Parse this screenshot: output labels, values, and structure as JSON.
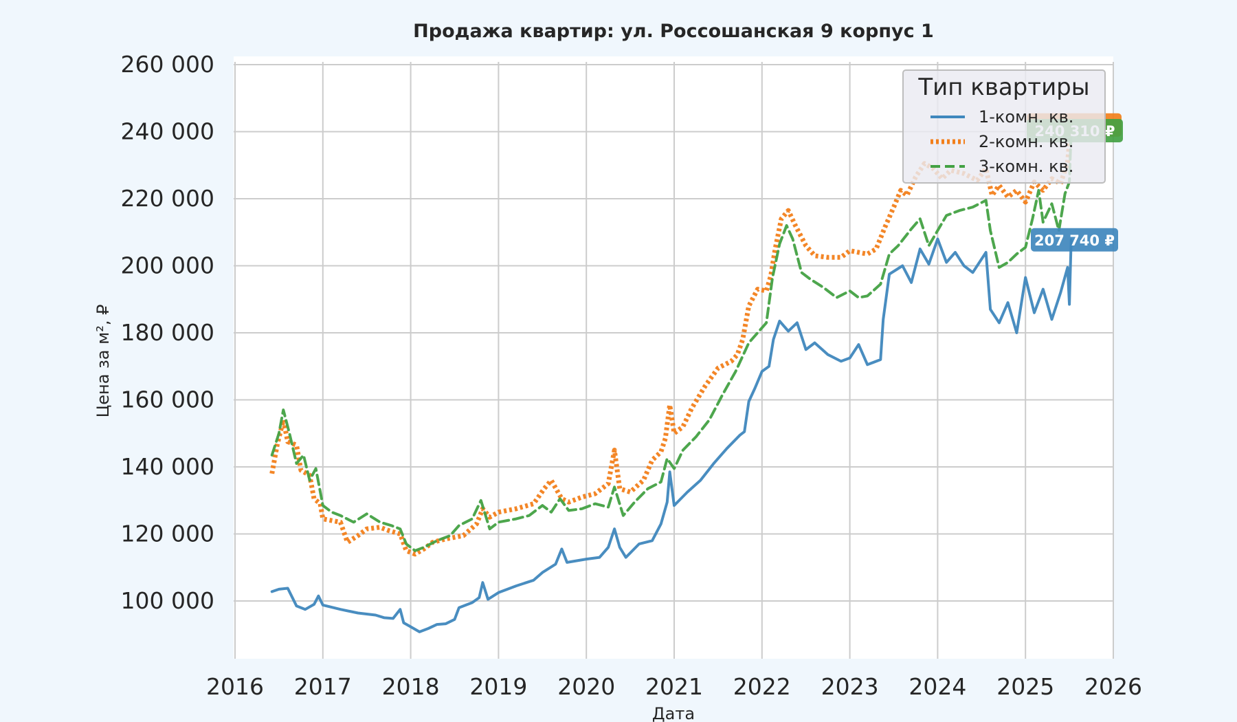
{
  "chart_data": {
    "type": "line",
    "title": "Продажа квартир: ул. Россошанская 9 корпус 1",
    "xlabel": "Дата",
    "ylabel": "Цена за м², ₽",
    "xlim": [
      2016,
      2026
    ],
    "ylim": [
      82000,
      262000
    ],
    "x_ticks": [
      "2016",
      "2017",
      "2018",
      "2019",
      "2020",
      "2021",
      "2022",
      "2023",
      "2024",
      "2025",
      "2026"
    ],
    "y_ticks": [
      {
        "value": 100000,
        "label": "100 000"
      },
      {
        "value": 120000,
        "label": "120 000"
      },
      {
        "value": 140000,
        "label": "140 000"
      },
      {
        "value": 160000,
        "label": "160 000"
      },
      {
        "value": 180000,
        "label": "180 000"
      },
      {
        "value": 200000,
        "label": "200 000"
      },
      {
        "value": 220000,
        "label": "220 000"
      },
      {
        "value": 240000,
        "label": "240 000"
      },
      {
        "value": 260000,
        "label": "260 000"
      }
    ],
    "grid": true,
    "legend": {
      "title": "Тип квартиры",
      "placement": "top-right"
    },
    "series": [
      {
        "name": "1-комн. кв.",
        "color": "#3f87bd",
        "style": "solid",
        "end_label": "207 740 ₽",
        "end_value": 207740,
        "points": [
          [
            2016.42,
            102800
          ],
          [
            2016.5,
            103500
          ],
          [
            2016.6,
            103800
          ],
          [
            2016.7,
            98500
          ],
          [
            2016.8,
            97500
          ],
          [
            2016.9,
            99000
          ],
          [
            2016.95,
            101500
          ],
          [
            2017.0,
            98800
          ],
          [
            2017.2,
            97500
          ],
          [
            2017.4,
            96400
          ],
          [
            2017.6,
            95800
          ],
          [
            2017.7,
            95000
          ],
          [
            2017.8,
            94800
          ],
          [
            2017.88,
            97500
          ],
          [
            2017.92,
            93500
          ],
          [
            2018.0,
            92300
          ],
          [
            2018.1,
            90800
          ],
          [
            2018.2,
            91800
          ],
          [
            2018.3,
            93000
          ],
          [
            2018.4,
            93200
          ],
          [
            2018.5,
            94500
          ],
          [
            2018.55,
            98000
          ],
          [
            2018.7,
            99500
          ],
          [
            2018.78,
            101000
          ],
          [
            2018.82,
            105500
          ],
          [
            2018.88,
            100500
          ],
          [
            2019.0,
            102500
          ],
          [
            2019.2,
            104500
          ],
          [
            2019.4,
            106200
          ],
          [
            2019.5,
            108500
          ],
          [
            2019.65,
            111000
          ],
          [
            2019.72,
            115500
          ],
          [
            2019.78,
            111500
          ],
          [
            2020.0,
            112500
          ],
          [
            2020.15,
            113000
          ],
          [
            2020.25,
            116000
          ],
          [
            2020.32,
            121500
          ],
          [
            2020.38,
            116000
          ],
          [
            2020.45,
            113000
          ],
          [
            2020.6,
            117000
          ],
          [
            2020.75,
            118000
          ],
          [
            2020.85,
            123000
          ],
          [
            2020.92,
            129500
          ],
          [
            2020.95,
            138500
          ],
          [
            2021.0,
            128500
          ],
          [
            2021.15,
            132500
          ],
          [
            2021.3,
            136000
          ],
          [
            2021.45,
            141000
          ],
          [
            2021.6,
            145500
          ],
          [
            2021.75,
            149500
          ],
          [
            2021.8,
            150500
          ],
          [
            2021.85,
            159500
          ],
          [
            2021.92,
            163500
          ],
          [
            2022.0,
            168500
          ],
          [
            2022.08,
            170000
          ],
          [
            2022.13,
            178000
          ],
          [
            2022.2,
            183500
          ],
          [
            2022.3,
            180500
          ],
          [
            2022.4,
            183000
          ],
          [
            2022.5,
            175000
          ],
          [
            2022.6,
            177000
          ],
          [
            2022.75,
            173500
          ],
          [
            2022.9,
            171500
          ],
          [
            2023.0,
            172500
          ],
          [
            2023.1,
            176500
          ],
          [
            2023.2,
            170500
          ],
          [
            2023.35,
            172000
          ],
          [
            2023.38,
            184000
          ],
          [
            2023.45,
            197500
          ],
          [
            2023.6,
            200000
          ],
          [
            2023.7,
            195000
          ],
          [
            2023.8,
            205000
          ],
          [
            2023.9,
            200500
          ],
          [
            2024.0,
            208000
          ],
          [
            2024.1,
            201000
          ],
          [
            2024.2,
            204000
          ],
          [
            2024.3,
            200000
          ],
          [
            2024.4,
            198000
          ],
          [
            2024.55,
            204000
          ],
          [
            2024.6,
            187000
          ],
          [
            2024.7,
            183000
          ],
          [
            2024.8,
            189000
          ],
          [
            2024.9,
            180000
          ],
          [
            2025.0,
            196500
          ],
          [
            2025.1,
            186000
          ],
          [
            2025.2,
            193000
          ],
          [
            2025.3,
            184000
          ],
          [
            2025.4,
            192000
          ],
          [
            2025.48,
            199500
          ],
          [
            2025.5,
            188500
          ],
          [
            2025.52,
            207740
          ]
        ]
      },
      {
        "name": "2-комн. кв.",
        "color": "#f27f1b",
        "style": "dotted",
        "end_label": "",
        "end_value": 242000,
        "points": [
          [
            2016.42,
            138000
          ],
          [
            2016.48,
            146500
          ],
          [
            2016.55,
            154000
          ],
          [
            2016.6,
            147500
          ],
          [
            2016.7,
            146500
          ],
          [
            2016.75,
            139000
          ],
          [
            2016.85,
            137500
          ],
          [
            2016.9,
            130500
          ],
          [
            2016.97,
            129000
          ],
          [
            2017.0,
            124500
          ],
          [
            2017.2,
            123500
          ],
          [
            2017.28,
            117500
          ],
          [
            2017.4,
            119500
          ],
          [
            2017.5,
            121500
          ],
          [
            2017.65,
            122000
          ],
          [
            2017.75,
            121000
          ],
          [
            2017.88,
            120000
          ],
          [
            2017.95,
            115000
          ],
          [
            2018.05,
            114000
          ],
          [
            2018.15,
            115500
          ],
          [
            2018.25,
            117500
          ],
          [
            2018.4,
            118500
          ],
          [
            2018.6,
            119500
          ],
          [
            2018.75,
            123000
          ],
          [
            2018.82,
            127500
          ],
          [
            2018.9,
            125000
          ],
          [
            2019.0,
            126500
          ],
          [
            2019.2,
            127500
          ],
          [
            2019.4,
            129000
          ],
          [
            2019.52,
            133500
          ],
          [
            2019.6,
            136000
          ],
          [
            2019.72,
            130500
          ],
          [
            2019.8,
            129500
          ],
          [
            2019.95,
            131000
          ],
          [
            2020.1,
            132000
          ],
          [
            2020.25,
            135000
          ],
          [
            2020.32,
            145000
          ],
          [
            2020.38,
            133500
          ],
          [
            2020.5,
            132500
          ],
          [
            2020.65,
            136000
          ],
          [
            2020.75,
            142000
          ],
          [
            2020.85,
            144500
          ],
          [
            2020.9,
            148500
          ],
          [
            2020.95,
            158500
          ],
          [
            2021.0,
            150000
          ],
          [
            2021.1,
            152000
          ],
          [
            2021.2,
            157500
          ],
          [
            2021.35,
            164000
          ],
          [
            2021.5,
            169500
          ],
          [
            2021.65,
            171500
          ],
          [
            2021.72,
            173500
          ],
          [
            2021.78,
            178000
          ],
          [
            2021.85,
            188000
          ],
          [
            2021.95,
            193000
          ],
          [
            2022.05,
            192500
          ],
          [
            2022.1,
            197000
          ],
          [
            2022.15,
            205000
          ],
          [
            2022.22,
            214000
          ],
          [
            2022.3,
            216500
          ],
          [
            2022.38,
            212000
          ],
          [
            2022.5,
            206000
          ],
          [
            2022.6,
            203000
          ],
          [
            2022.75,
            202500
          ],
          [
            2022.9,
            202500
          ],
          [
            2023.0,
            204500
          ],
          [
            2023.2,
            203500
          ],
          [
            2023.3,
            205000
          ],
          [
            2023.4,
            211500
          ],
          [
            2023.5,
            217500
          ],
          [
            2023.58,
            222500
          ],
          [
            2023.65,
            221000
          ],
          [
            2023.75,
            226500
          ],
          [
            2023.85,
            230500
          ],
          [
            2023.95,
            229000
          ],
          [
            2024.05,
            226000
          ],
          [
            2024.15,
            228500
          ],
          [
            2024.3,
            227500
          ],
          [
            2024.45,
            225500
          ],
          [
            2024.55,
            229000
          ],
          [
            2024.62,
            221000
          ],
          [
            2024.7,
            224000
          ],
          [
            2024.8,
            220500
          ],
          [
            2024.9,
            222500
          ],
          [
            2025.0,
            219000
          ],
          [
            2025.1,
            225000
          ],
          [
            2025.2,
            222500
          ],
          [
            2025.3,
            226000
          ],
          [
            2025.4,
            224500
          ],
          [
            2025.48,
            231000
          ],
          [
            2025.52,
            242000
          ]
        ]
      },
      {
        "name": "3-комн. кв.",
        "color": "#43a143",
        "style": "dashed",
        "end_label": "240 310 ₽",
        "end_value": 240310,
        "points": [
          [
            2016.42,
            143500
          ],
          [
            2016.5,
            150000
          ],
          [
            2016.55,
            157000
          ],
          [
            2016.62,
            150000
          ],
          [
            2016.7,
            141000
          ],
          [
            2016.78,
            143500
          ],
          [
            2016.85,
            136000
          ],
          [
            2016.92,
            139500
          ],
          [
            2017.0,
            128500
          ],
          [
            2017.1,
            126500
          ],
          [
            2017.2,
            125500
          ],
          [
            2017.35,
            123500
          ],
          [
            2017.5,
            126000
          ],
          [
            2017.65,
            123500
          ],
          [
            2017.78,
            122500
          ],
          [
            2017.88,
            121500
          ],
          [
            2017.95,
            117000
          ],
          [
            2018.05,
            115000
          ],
          [
            2018.15,
            116000
          ],
          [
            2018.3,
            118000
          ],
          [
            2018.45,
            119500
          ],
          [
            2018.55,
            122500
          ],
          [
            2018.7,
            124500
          ],
          [
            2018.8,
            130000
          ],
          [
            2018.9,
            121500
          ],
          [
            2019.0,
            123500
          ],
          [
            2019.2,
            124500
          ],
          [
            2019.35,
            125500
          ],
          [
            2019.5,
            128500
          ],
          [
            2019.6,
            126500
          ],
          [
            2019.7,
            130500
          ],
          [
            2019.8,
            127000
          ],
          [
            2019.95,
            127500
          ],
          [
            2020.1,
            129000
          ],
          [
            2020.25,
            128000
          ],
          [
            2020.32,
            134000
          ],
          [
            2020.42,
            125500
          ],
          [
            2020.55,
            129500
          ],
          [
            2020.7,
            133500
          ],
          [
            2020.85,
            135500
          ],
          [
            2020.92,
            142500
          ],
          [
            2021.0,
            139500
          ],
          [
            2021.1,
            145000
          ],
          [
            2021.25,
            149000
          ],
          [
            2021.4,
            154000
          ],
          [
            2021.55,
            161500
          ],
          [
            2021.7,
            168500
          ],
          [
            2021.85,
            177000
          ],
          [
            2021.95,
            180000
          ],
          [
            2022.05,
            183000
          ],
          [
            2022.12,
            196500
          ],
          [
            2022.2,
            206500
          ],
          [
            2022.28,
            212000
          ],
          [
            2022.35,
            208000
          ],
          [
            2022.45,
            198000
          ],
          [
            2022.55,
            196000
          ],
          [
            2022.7,
            193500
          ],
          [
            2022.85,
            190500
          ],
          [
            2023.0,
            192500
          ],
          [
            2023.1,
            190500
          ],
          [
            2023.2,
            191000
          ],
          [
            2023.35,
            194500
          ],
          [
            2023.45,
            203500
          ],
          [
            2023.55,
            206000
          ],
          [
            2023.7,
            211000
          ],
          [
            2023.8,
            214000
          ],
          [
            2023.9,
            206000
          ],
          [
            2024.0,
            210500
          ],
          [
            2024.1,
            215000
          ],
          [
            2024.25,
            216500
          ],
          [
            2024.4,
            217500
          ],
          [
            2024.55,
            219500
          ],
          [
            2024.6,
            210500
          ],
          [
            2024.7,
            199500
          ],
          [
            2024.8,
            201000
          ],
          [
            2024.9,
            203500
          ],
          [
            2025.0,
            205500
          ],
          [
            2025.08,
            214000
          ],
          [
            2025.15,
            222500
          ],
          [
            2025.2,
            213000
          ],
          [
            2025.3,
            218500
          ],
          [
            2025.38,
            210500
          ],
          [
            2025.45,
            221500
          ],
          [
            2025.5,
            225000
          ],
          [
            2025.52,
            240310
          ]
        ]
      }
    ]
  }
}
